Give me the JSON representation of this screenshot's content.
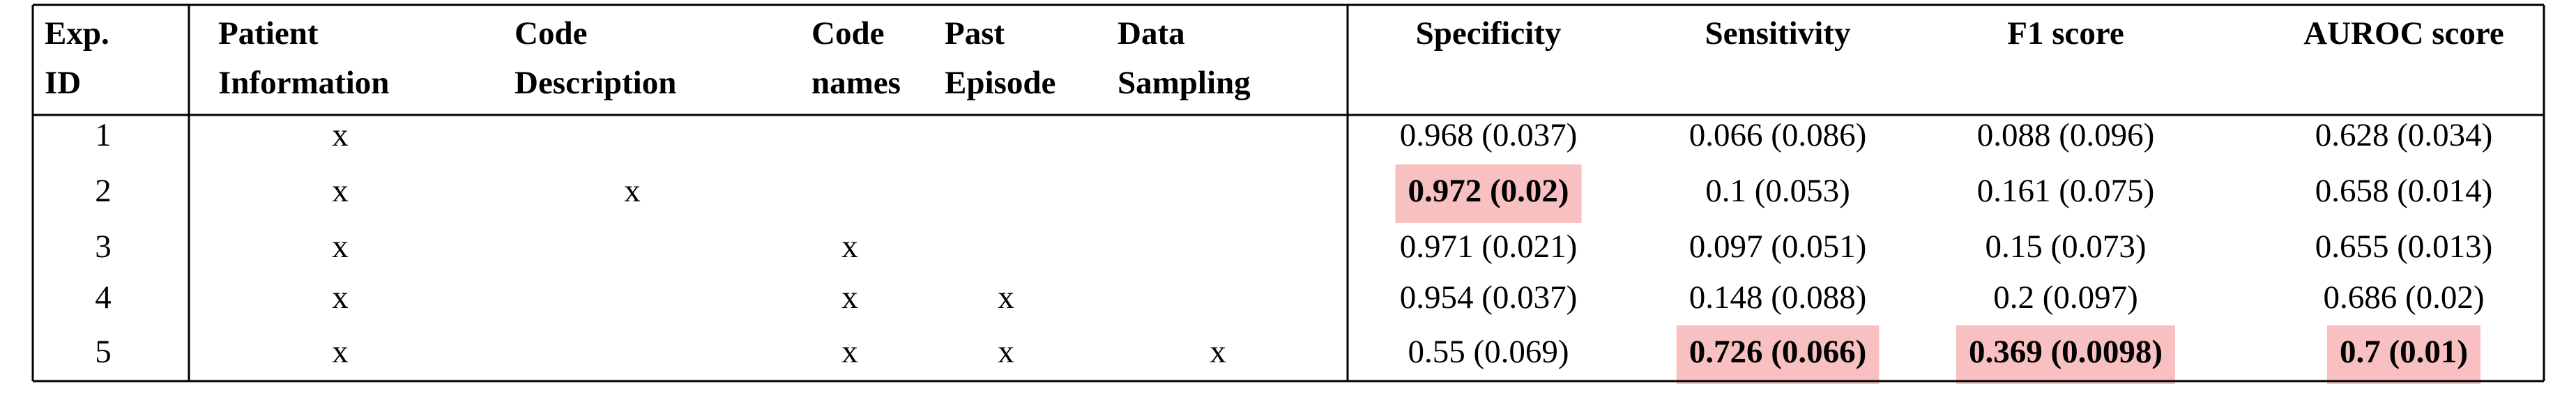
{
  "table": {
    "header": [
      [
        "Exp.",
        "ID"
      ],
      [
        "Patient",
        "Information"
      ],
      [
        "Code",
        "Description"
      ],
      [
        "Code",
        "names"
      ],
      [
        "Past",
        "Episode"
      ],
      [
        "Data",
        "Sampling"
      ],
      [
        "Specificity"
      ],
      [
        "Sensitivity"
      ],
      [
        "F1 score"
      ],
      [
        "AUROC score"
      ]
    ],
    "rows": [
      [
        "1",
        "x",
        null,
        null,
        null,
        null,
        "0.968 (0.037)",
        "0.066 (0.086)",
        "0.088 (0.096)",
        "0.628 (0.034)"
      ],
      [
        "2",
        "x",
        "x",
        null,
        null,
        null,
        "0.972 (0.02)",
        "0.1 (0.053)",
        "0.161 (0.075)",
        "0.658 (0.014)"
      ],
      [
        "3",
        "x",
        null,
        "x",
        null,
        null,
        "0.971 (0.021)",
        "0.097 (0.051)",
        "0.15 (0.073)",
        "0.655 (0.013)"
      ],
      [
        "4",
        "x",
        null,
        "x",
        "x",
        null,
        "0.954 (0.037)",
        "0.148 (0.088)",
        "0.2 (0.097)",
        "0.686 (0.02)"
      ],
      [
        "5",
        "x",
        null,
        "x",
        "x",
        "x",
        "0.55 (0.069)",
        "0.726 (0.066)",
        "0.369 (0.0098)",
        "0.7 (0.01)"
      ]
    ],
    "highlighted": [
      [
        1,
        6
      ],
      [
        4,
        7
      ],
      [
        4,
        8
      ],
      [
        4,
        9
      ]
    ],
    "highlight_color": "#f8c0c0"
  }
}
